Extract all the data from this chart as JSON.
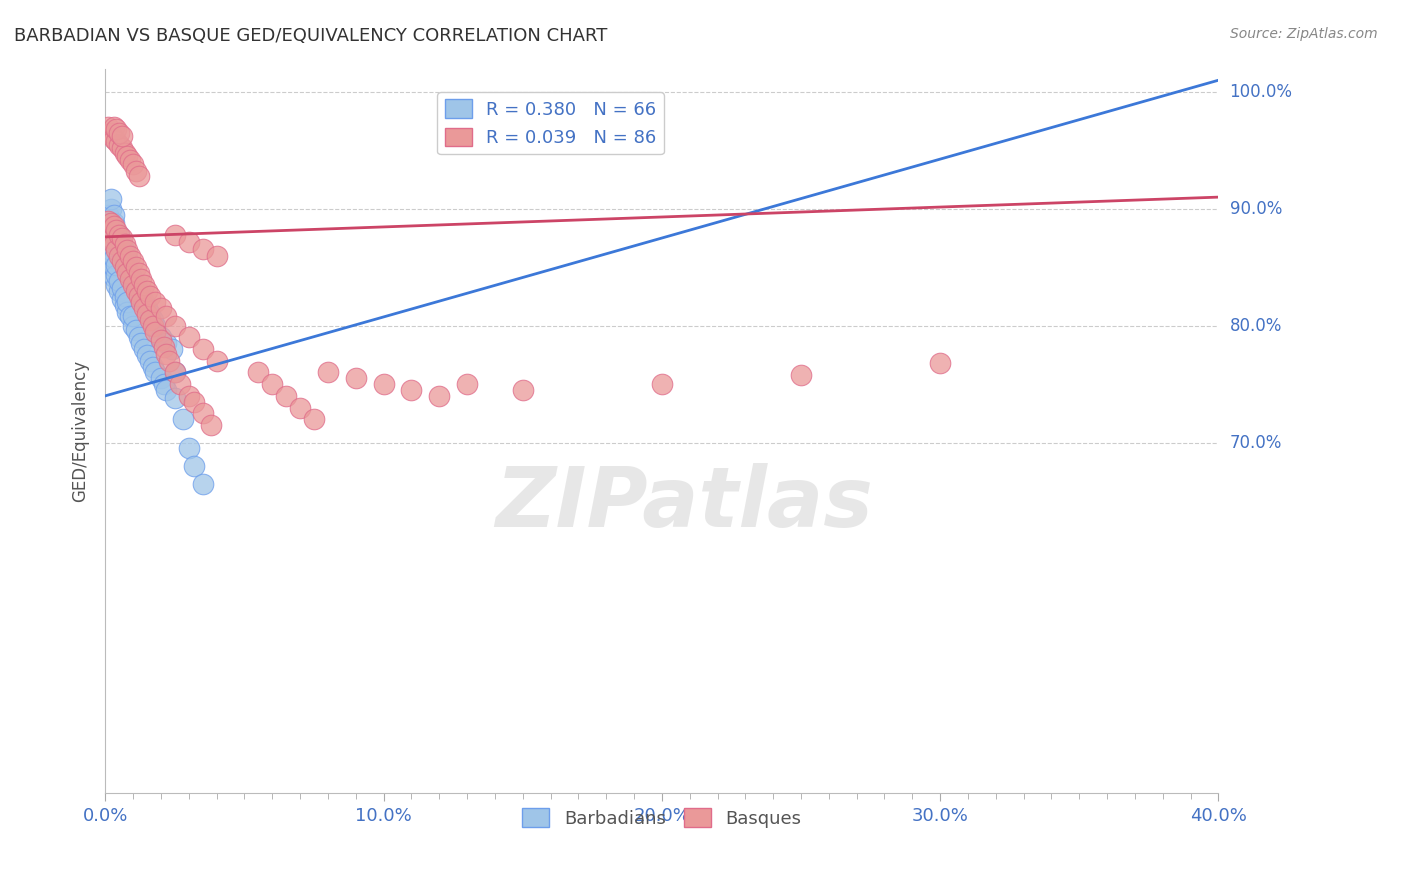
{
  "title": "BARBADIAN VS BASQUE GED/EQUIVALENCY CORRELATION CHART",
  "source": "Source: ZipAtlas.com",
  "ylabel": "GED/Equivalency",
  "legend_label1": "Barbadians",
  "legend_label2": "Basques",
  "R1": 0.38,
  "N1": 66,
  "R2": 0.039,
  "N2": 86,
  "color1": "#9fc5e8",
  "color2": "#ea9999",
  "edge1": "#6d9eeb",
  "edge2": "#e06c8a",
  "trendline1_color": "#3c78d8",
  "trendline2_color": "#cc4466",
  "xmin": 0.0,
  "xmax": 0.4,
  "ymin": 0.4,
  "ymax": 1.02,
  "xtick_vals": [
    0.0,
    0.1,
    0.2,
    0.3,
    0.4
  ],
  "xtick_labels": [
    "0.0%",
    "10.0%",
    "20.0%",
    "30.0%",
    "40.0%"
  ],
  "ytick_vals": [
    0.7,
    0.8,
    0.9,
    1.0
  ],
  "ytick_labels": [
    "70.0%",
    "80.0%",
    "90.0%",
    "100.0%"
  ],
  "watermark_text": "ZIPatlas",
  "watermark_color": "#d8d8d8",
  "background_color": "#ffffff",
  "grid_color": "#cccccc",
  "trendline1_x0": 0.0,
  "trendline1_y0": 0.74,
  "trendline1_x1": 0.4,
  "trendline1_y1": 1.01,
  "trendline2_x0": 0.0,
  "trendline2_y0": 0.876,
  "trendline2_x1": 0.4,
  "trendline2_y1": 0.91,
  "blue_x": [
    0.001,
    0.001,
    0.002,
    0.002,
    0.002,
    0.003,
    0.003,
    0.003,
    0.004,
    0.004,
    0.004,
    0.005,
    0.005,
    0.006,
    0.006,
    0.007,
    0.007,
    0.008,
    0.008,
    0.009,
    0.01,
    0.01,
    0.011,
    0.012,
    0.013,
    0.014,
    0.015,
    0.016,
    0.017,
    0.018,
    0.02,
    0.021,
    0.022,
    0.025,
    0.001,
    0.002,
    0.002,
    0.003,
    0.003,
    0.004,
    0.005,
    0.005,
    0.006,
    0.006,
    0.007,
    0.007,
    0.008,
    0.008,
    0.009,
    0.01,
    0.011,
    0.012,
    0.013,
    0.014,
    0.015,
    0.016,
    0.017,
    0.018,
    0.02,
    0.022,
    0.024,
    0.025,
    0.028,
    0.03,
    0.032,
    0.035
  ],
  "blue_y": [
    0.87,
    0.88,
    0.855,
    0.865,
    0.875,
    0.842,
    0.85,
    0.858,
    0.835,
    0.843,
    0.852,
    0.83,
    0.838,
    0.823,
    0.832,
    0.818,
    0.825,
    0.812,
    0.82,
    0.808,
    0.8,
    0.808,
    0.796,
    0.79,
    0.785,
    0.78,
    0.775,
    0.77,
    0.765,
    0.76,
    0.755,
    0.75,
    0.745,
    0.738,
    0.895,
    0.9,
    0.908,
    0.888,
    0.895,
    0.88,
    0.87,
    0.878,
    0.862,
    0.87,
    0.856,
    0.864,
    0.85,
    0.858,
    0.844,
    0.84,
    0.836,
    0.83,
    0.825,
    0.82,
    0.815,
    0.81,
    0.805,
    0.8,
    0.79,
    0.785,
    0.78,
    0.76,
    0.72,
    0.695,
    0.68,
    0.665
  ],
  "pink_x": [
    0.001,
    0.001,
    0.002,
    0.002,
    0.003,
    0.003,
    0.004,
    0.004,
    0.005,
    0.005,
    0.006,
    0.006,
    0.007,
    0.007,
    0.008,
    0.008,
    0.009,
    0.009,
    0.01,
    0.01,
    0.011,
    0.011,
    0.012,
    0.012,
    0.013,
    0.014,
    0.015,
    0.016,
    0.017,
    0.018,
    0.02,
    0.021,
    0.022,
    0.023,
    0.025,
    0.027,
    0.03,
    0.032,
    0.035,
    0.038,
    0.001,
    0.002,
    0.003,
    0.003,
    0.004,
    0.004,
    0.005,
    0.005,
    0.006,
    0.006,
    0.007,
    0.008,
    0.009,
    0.01,
    0.011,
    0.012,
    0.013,
    0.014,
    0.015,
    0.016,
    0.018,
    0.02,
    0.022,
    0.025,
    0.03,
    0.035,
    0.04,
    0.055,
    0.06,
    0.065,
    0.07,
    0.075,
    0.08,
    0.09,
    0.1,
    0.11,
    0.12,
    0.13,
    0.15,
    0.2,
    0.25,
    0.3,
    0.025,
    0.03,
    0.035,
    0.04
  ],
  "pink_y": [
    0.88,
    0.97,
    0.875,
    0.965,
    0.87,
    0.96,
    0.865,
    0.958,
    0.86,
    0.955,
    0.855,
    0.952,
    0.85,
    0.948,
    0.845,
    0.945,
    0.84,
    0.942,
    0.835,
    0.938,
    0.83,
    0.932,
    0.825,
    0.928,
    0.82,
    0.815,
    0.81,
    0.805,
    0.8,
    0.795,
    0.788,
    0.782,
    0.776,
    0.77,
    0.76,
    0.75,
    0.74,
    0.735,
    0.725,
    0.715,
    0.89,
    0.888,
    0.885,
    0.97,
    0.882,
    0.968,
    0.878,
    0.965,
    0.875,
    0.962,
    0.87,
    0.865,
    0.86,
    0.855,
    0.85,
    0.845,
    0.84,
    0.835,
    0.83,
    0.825,
    0.82,
    0.815,
    0.808,
    0.8,
    0.79,
    0.78,
    0.77,
    0.76,
    0.75,
    0.74,
    0.73,
    0.72,
    0.76,
    0.755,
    0.75,
    0.745,
    0.74,
    0.75,
    0.745,
    0.75,
    0.758,
    0.768,
    0.878,
    0.872,
    0.866,
    0.86
  ]
}
